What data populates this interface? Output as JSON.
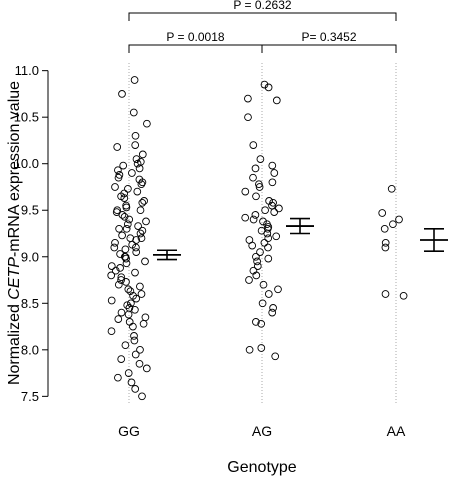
{
  "chart_data": {
    "type": "scatter",
    "subtype": "jittered strip plot with mean ± SE error bars",
    "xlabel": "Genotype",
    "ylabel_prefix": "Normalized ",
    "ylabel_gene": "CETP",
    "ylabel_suffix": "-mRNA expression value",
    "ylim": [
      7.45,
      11.05
    ],
    "yticks": [
      "7.5",
      "8.0",
      "8.5",
      "9.0",
      "9.5",
      "10.0",
      "10.5",
      "11.0"
    ],
    "grid": false,
    "marker": "open circle",
    "point_color": "#000000",
    "guide_line_color": "#aaaaaa",
    "categories": [
      "GG",
      "AG",
      "AA"
    ],
    "groups": [
      {
        "name": "GG",
        "mean": 9.02,
        "ci_low": 8.97,
        "ci_high": 9.07,
        "values": [
          10.9,
          10.75,
          10.55,
          10.43,
          10.3,
          10.2,
          10.18,
          10.1,
          10.05,
          10.02,
          10.0,
          9.98,
          9.95,
          9.93,
          9.9,
          9.88,
          9.85,
          9.83,
          9.8,
          9.78,
          9.75,
          9.73,
          9.7,
          9.68,
          9.65,
          9.63,
          9.6,
          9.58,
          9.55,
          9.53,
          9.5,
          9.5,
          9.48,
          9.45,
          9.43,
          9.4,
          9.38,
          9.35,
          9.33,
          9.3,
          9.3,
          9.28,
          9.25,
          9.23,
          9.2,
          9.2,
          9.18,
          9.15,
          9.13,
          9.1,
          9.1,
          9.08,
          9.05,
          9.03,
          9.0,
          9.0,
          8.98,
          8.95,
          8.93,
          8.9,
          8.88,
          8.85,
          8.83,
          8.8,
          8.78,
          8.75,
          8.73,
          8.7,
          8.68,
          8.65,
          8.63,
          8.6,
          8.58,
          8.55,
          8.53,
          8.5,
          8.48,
          8.45,
          8.43,
          8.4,
          8.38,
          8.35,
          8.33,
          8.3,
          8.28,
          8.25,
          8.2,
          8.15,
          8.1,
          8.05,
          8.0,
          7.95,
          7.9,
          7.85,
          7.8,
          7.75,
          7.7,
          7.65,
          7.58,
          7.5
        ]
      },
      {
        "name": "AG",
        "mean": 9.33,
        "ci_low": 9.25,
        "ci_high": 9.41,
        "values": [
          10.85,
          10.82,
          10.7,
          10.68,
          10.5,
          10.2,
          10.05,
          9.98,
          9.95,
          9.9,
          9.85,
          9.8,
          9.78,
          9.75,
          9.7,
          9.65,
          9.6,
          9.58,
          9.55,
          9.52,
          9.5,
          9.48,
          9.45,
          9.42,
          9.4,
          9.38,
          9.35,
          9.32,
          9.3,
          9.28,
          9.25,
          9.22,
          9.2,
          9.18,
          9.15,
          9.12,
          9.1,
          9.05,
          9.0,
          8.98,
          8.95,
          8.9,
          8.85,
          8.8,
          8.75,
          8.7,
          8.65,
          8.6,
          8.5,
          8.45,
          8.4,
          8.3,
          8.28,
          8.02,
          8.0,
          7.93
        ]
      },
      {
        "name": "AA",
        "mean": 9.18,
        "ci_low": 9.06,
        "ci_high": 9.3,
        "values": [
          9.73,
          9.47,
          9.4,
          9.35,
          9.3,
          9.15,
          9.1,
          8.6,
          8.58
        ]
      }
    ],
    "annotations": [
      {
        "text": "P = 0.2632",
        "from": "GG",
        "to": "AA",
        "level": 2
      },
      {
        "text": "P = 0.0018",
        "from": "GG",
        "to": "AG",
        "level": 1
      },
      {
        "text": "P= 0.3452",
        "from": "AG",
        "to": "AA",
        "level": 1
      }
    ]
  }
}
